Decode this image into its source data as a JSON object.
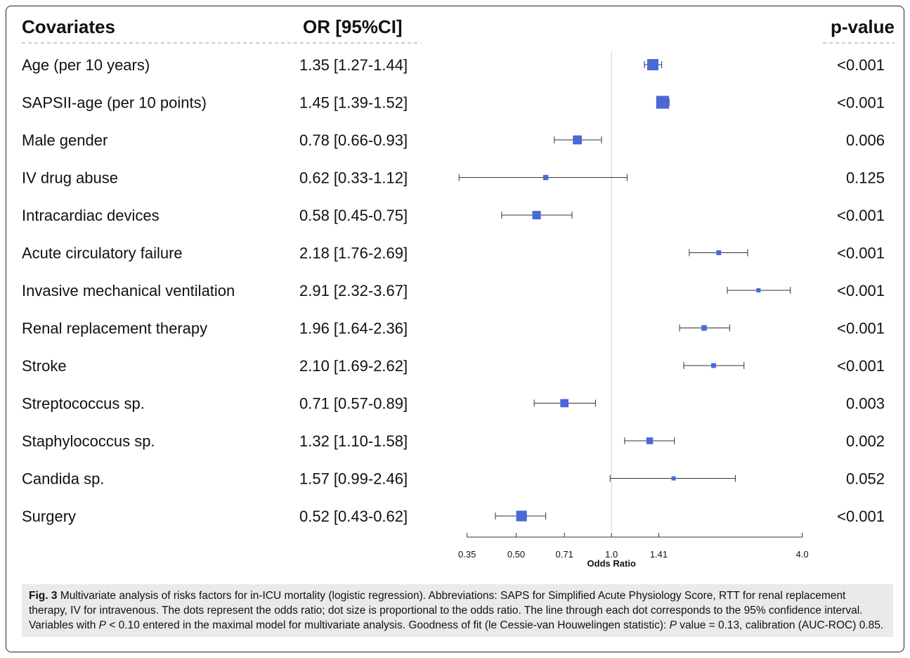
{
  "chart_data": {
    "type": "forest",
    "headers": {
      "covariates": "Covariates",
      "or": "OR [95%CI]",
      "pvalue": "p-value"
    },
    "xlabel": "Odds Ratio",
    "x_scale": "log",
    "xlim": [
      0.28,
      4.6
    ],
    "ref_line": 1.0,
    "x_ticks": [
      0.35,
      0.5,
      0.71,
      1.0,
      1.41,
      4.0
    ],
    "x_tick_labels": [
      "0.35",
      "0.50",
      "0.71",
      "1.0",
      "1.41",
      "4.0"
    ],
    "marker_color": "#4a68d8",
    "rows": [
      {
        "label": "Age (per 10 years)",
        "or_text": "1.35 [1.27-1.44]",
        "or": 1.35,
        "lo": 1.27,
        "hi": 1.44,
        "p": "<0.001"
      },
      {
        "label": "SAPSII-age (per 10 points)",
        "or_text": "1.45 [1.39-1.52]",
        "or": 1.45,
        "lo": 1.39,
        "hi": 1.52,
        "p": "<0.001"
      },
      {
        "label": "Male gender",
        "or_text": "0.78 [0.66-0.93]",
        "or": 0.78,
        "lo": 0.66,
        "hi": 0.93,
        "p": "0.006"
      },
      {
        "label": "IV drug abuse",
        "or_text": "0.62 [0.33-1.12]",
        "or": 0.62,
        "lo": 0.33,
        "hi": 1.12,
        "p": "0.125"
      },
      {
        "label": "Intracardiac devices",
        "or_text": "0.58 [0.45-0.75]",
        "or": 0.58,
        "lo": 0.45,
        "hi": 0.75,
        "p": "<0.001"
      },
      {
        "label": "Acute circulatory failure",
        "or_text": "2.18 [1.76-2.69]",
        "or": 2.18,
        "lo": 1.76,
        "hi": 2.69,
        "p": "<0.001"
      },
      {
        "label": "Invasive mechanical ventilation",
        "or_text": "2.91 [2.32-3.67]",
        "or": 2.91,
        "lo": 2.32,
        "hi": 3.67,
        "p": "<0.001"
      },
      {
        "label": "Renal replacement therapy",
        "or_text": "1.96 [1.64-2.36]",
        "or": 1.96,
        "lo": 1.64,
        "hi": 2.36,
        "p": "<0.001"
      },
      {
        "label": "Stroke",
        "or_text": "2.10 [1.69-2.62]",
        "or": 2.1,
        "lo": 1.69,
        "hi": 2.62,
        "p": "<0.001"
      },
      {
        "label": "Streptococcus sp.",
        "or_text": "0.71 [0.57-0.89]",
        "or": 0.71,
        "lo": 0.57,
        "hi": 0.89,
        "p": "0.003"
      },
      {
        "label": "Staphylococcus sp.",
        "or_text": "1.32 [1.10-1.58]",
        "or": 1.32,
        "lo": 1.1,
        "hi": 1.58,
        "p": "0.002"
      },
      {
        "label": "Candida sp.",
        "or_text": "1.57 [0.99-2.46]",
        "or": 1.57,
        "lo": 0.99,
        "hi": 2.46,
        "p": "0.052"
      },
      {
        "label": "Surgery",
        "or_text": "0.52 [0.43-0.62]",
        "or": 0.52,
        "lo": 0.43,
        "hi": 0.62,
        "p": "<0.001"
      }
    ]
  },
  "caption": {
    "fig": "Fig. 3",
    "part1": " Multivariate analysis of risks factors for in-ICU mortality (logistic regression). Abbreviations: SAPS for Simplified Acute Physiology Score, RTT for renal replacement therapy, IV for intravenous. The dots represent the odds ratio; dot size is proportional to the odds ratio. The line through each dot corresponds to the 95% confidence interval. Variables with ",
    "p_sym": "P",
    "part2": " < 0.10 entered in the maximal model for multivariate analysis. Goodness of fit (le Cessie-van Houwelingen statistic): ",
    "p_sym2": "P",
    "part3": " value = 0.13, calibration (AUC-ROC) 0.85."
  }
}
